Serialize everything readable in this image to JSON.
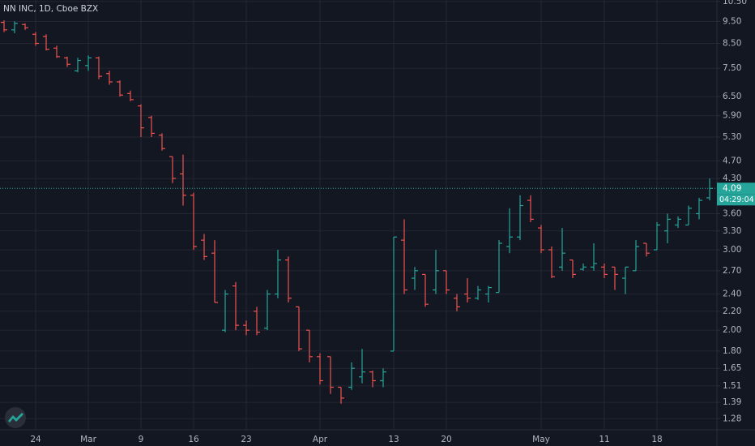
{
  "chart_data": {
    "type": "ohlc",
    "title": "NN INC, 1D, Cboe BZX",
    "categories": [
      null,
      null,
      null,
      "24",
      null,
      null,
      null,
      null,
      "Mar",
      null,
      null,
      null,
      null,
      "9",
      null,
      null,
      null,
      null,
      "16",
      null,
      null,
      null,
      null,
      "23",
      null,
      null,
      null,
      null,
      null,
      null,
      "Apr",
      null,
      null,
      null,
      null,
      null,
      null,
      "13",
      null,
      null,
      null,
      null,
      "20",
      null,
      null,
      null,
      null,
      null,
      null,
      null,
      null,
      "May",
      null,
      null,
      null,
      null,
      null,
      "11",
      null,
      null,
      null,
      null,
      "18",
      null,
      null,
      null,
      null,
      null
    ],
    "open": [
      9.45,
      9.1,
      9.35,
      8.9,
      8.8,
      8.3,
      7.9,
      7.4,
      7.6,
      7.9,
      7.3,
      7.0,
      6.6,
      6.2,
      5.85,
      5.35,
      4.8,
      4.4,
      3.95,
      3.15,
      2.95,
      2.0,
      2.5,
      2.05,
      2.2,
      2.02,
      2.4,
      2.85,
      2.25,
      2.0,
      1.75,
      1.75,
      1.5,
      1.5,
      1.58,
      1.62,
      1.55,
      1.8,
      3.15,
      2.6,
      2.65,
      2.45,
      2.7,
      2.35,
      2.4,
      2.35,
      2.4,
      2.42,
      3.05,
      3.2,
      3.85,
      3.35,
      3.0,
      2.75,
      2.85,
      2.72,
      2.75,
      2.75,
      2.75,
      2.6,
      2.7,
      3.1,
      3.0,
      3.3,
      3.4,
      3.4,
      3.6,
      3.9
    ],
    "high": [
      9.55,
      9.5,
      9.4,
      9.0,
      8.9,
      8.4,
      7.95,
      7.9,
      8.0,
      7.95,
      7.4,
      7.05,
      6.7,
      6.25,
      5.9,
      5.4,
      4.8,
      4.85,
      4.0,
      3.25,
      3.15,
      2.45,
      2.55,
      2.1,
      2.25,
      2.45,
      3.0,
      2.9,
      2.25,
      2.0,
      1.78,
      1.75,
      1.5,
      1.7,
      1.82,
      1.63,
      1.65,
      3.2,
      3.5,
      2.75,
      2.65,
      3.0,
      2.7,
      2.4,
      2.6,
      2.5,
      2.5,
      3.15,
      3.7,
      3.95,
      3.95,
      3.4,
      3.05,
      3.35,
      2.85,
      2.8,
      3.1,
      2.8,
      2.75,
      2.75,
      3.15,
      3.1,
      3.45,
      3.6,
      3.55,
      3.75,
      3.9,
      4.3
    ],
    "low": [
      9.0,
      8.95,
      9.1,
      8.4,
      8.2,
      7.9,
      7.55,
      7.35,
      7.4,
      7.1,
      6.9,
      6.5,
      6.35,
      5.3,
      5.3,
      4.95,
      4.2,
      3.75,
      3.0,
      2.85,
      2.3,
      1.98,
      2.0,
      1.95,
      1.95,
      2.0,
      2.35,
      2.3,
      1.8,
      1.7,
      1.52,
      1.45,
      1.38,
      1.48,
      1.53,
      1.5,
      1.5,
      1.8,
      2.4,
      2.45,
      2.25,
      2.4,
      2.4,
      2.2,
      2.3,
      2.33,
      2.3,
      2.42,
      2.95,
      3.15,
      3.45,
      2.95,
      2.6,
      2.7,
      2.6,
      2.7,
      2.7,
      2.6,
      2.45,
      2.4,
      2.7,
      2.9,
      3.0,
      3.1,
      3.35,
      3.4,
      3.5,
      3.85
    ],
    "close": [
      9.1,
      9.4,
      9.2,
      8.5,
      8.25,
      7.95,
      7.65,
      7.8,
      7.9,
      7.2,
      7.0,
      6.55,
      6.4,
      5.55,
      5.4,
      5.0,
      4.3,
      3.95,
      3.05,
      2.9,
      2.3,
      2.4,
      2.05,
      2.0,
      1.98,
      2.4,
      2.85,
      2.35,
      1.82,
      1.75,
      1.55,
      1.5,
      1.42,
      1.65,
      1.62,
      1.55,
      1.62,
      3.2,
      2.45,
      2.7,
      2.28,
      2.7,
      2.45,
      2.25,
      2.35,
      2.45,
      2.48,
      3.1,
      3.2,
      3.75,
      3.5,
      3.0,
      2.62,
      2.95,
      2.65,
      2.75,
      2.8,
      2.65,
      2.65,
      2.75,
      3.05,
      2.95,
      3.4,
      3.5,
      3.5,
      3.7,
      3.85,
      4.09
    ],
    "up_color": "#26a69a",
    "down_color": "#ef5350",
    "log_scale": true,
    "grid": true,
    "ylim": [
      1.21,
      10.58
    ],
    "yticks": [
      {
        "value": 10.5,
        "label": "10.50"
      },
      {
        "value": 9.5,
        "label": "9.50"
      },
      {
        "value": 8.5,
        "label": "8.50"
      },
      {
        "value": 7.5,
        "label": "7.50"
      },
      {
        "value": 6.5,
        "label": "6.50"
      },
      {
        "value": 5.9,
        "label": "5.90"
      },
      {
        "value": 5.3,
        "label": "5.30"
      },
      {
        "value": 4.7,
        "label": "4.70"
      },
      {
        "value": 4.3,
        "label": "4.30"
      },
      {
        "value": 3.6,
        "label": "3.60"
      },
      {
        "value": 3.3,
        "label": "3.30"
      },
      {
        "value": 3.0,
        "label": "3.00"
      },
      {
        "value": 2.7,
        "label": "2.70"
      },
      {
        "value": 2.4,
        "label": "2.40"
      },
      {
        "value": 2.2,
        "label": "2.20"
      },
      {
        "value": 2.0,
        "label": "2.00"
      },
      {
        "value": 1.8,
        "label": "1.80"
      },
      1.65,
      1.51,
      1.39,
      1.28
    ],
    "last_price": 4.09,
    "countdown": "04:29:04"
  }
}
